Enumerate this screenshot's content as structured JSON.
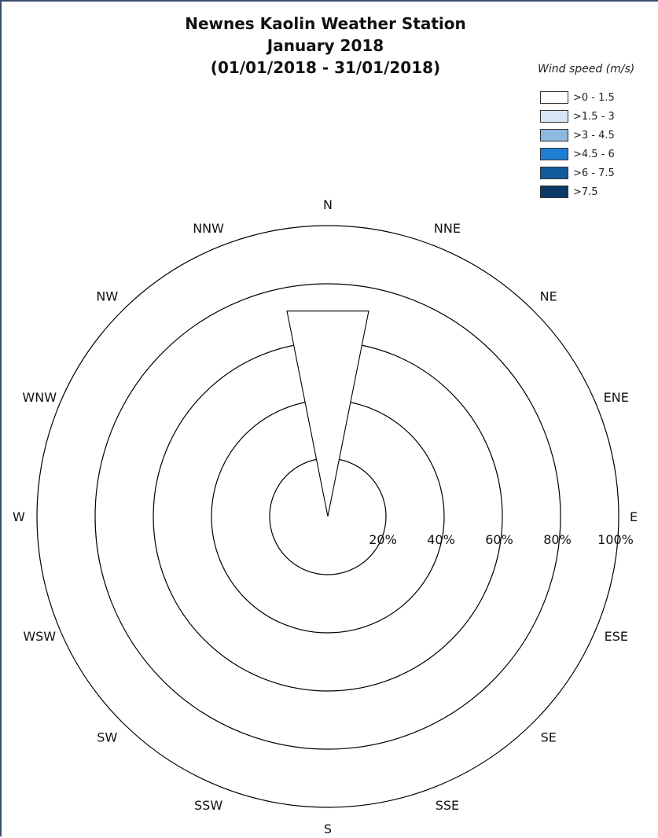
{
  "chart_data": {
    "type": "wind-rose",
    "title": "Newnes Kaolin Weather Station",
    "subtitle": "January 2018",
    "period": "(01/01/2018 - 31/01/2018)",
    "legend_title": "Wind speed (m/s)",
    "legend_position": "top-right",
    "speed_bins": [
      {
        "label": ">0 - 1.5",
        "color": "#ffffff"
      },
      {
        "label": ">1.5 - 3",
        "color": "#d6e6f4"
      },
      {
        "label": ">3 - 4.5",
        "color": "#8db8df"
      },
      {
        "label": ">4.5 - 6",
        "color": "#1f7fd4"
      },
      {
        "label": ">6 - 7.5",
        "color": "#125a9c"
      },
      {
        "label": ">7.5",
        "color": "#0c3a66"
      }
    ],
    "directions": [
      "N",
      "NNE",
      "NE",
      "ENE",
      "E",
      "ESE",
      "SE",
      "SSE",
      "S",
      "SSW",
      "SW",
      "WSW",
      "W",
      "WNW",
      "NW",
      "NNW"
    ],
    "ring_labels": [
      "20%",
      "40%",
      "60%",
      "80%",
      "100%"
    ],
    "r_max": 100,
    "ring_values": [
      20,
      40,
      60,
      80,
      100
    ],
    "frequencies": [
      {
        "direction": "N",
        "values": [
          72,
          0,
          0,
          0,
          0,
          0
        ]
      },
      {
        "direction": "NNE",
        "values": [
          0,
          0,
          0,
          0,
          0,
          0
        ]
      },
      {
        "direction": "NE",
        "values": [
          0,
          0,
          0,
          0,
          0,
          0
        ]
      },
      {
        "direction": "ENE",
        "values": [
          0,
          0,
          0,
          0,
          0,
          0
        ]
      },
      {
        "direction": "E",
        "values": [
          0,
          0,
          0,
          0,
          0,
          0
        ]
      },
      {
        "direction": "ESE",
        "values": [
          0,
          0,
          0,
          0,
          0,
          0
        ]
      },
      {
        "direction": "SE",
        "values": [
          0,
          0,
          0,
          0,
          0,
          0
        ]
      },
      {
        "direction": "SSE",
        "values": [
          0,
          0,
          0,
          0,
          0,
          0
        ]
      },
      {
        "direction": "S",
        "values": [
          0,
          0,
          0,
          0,
          0,
          0
        ]
      },
      {
        "direction": "SSW",
        "values": [
          0,
          0,
          0,
          0,
          0,
          0
        ]
      },
      {
        "direction": "SW",
        "values": [
          0,
          0,
          0,
          0,
          0,
          0
        ]
      },
      {
        "direction": "WSW",
        "values": [
          0,
          0,
          0,
          0,
          0,
          0
        ]
      },
      {
        "direction": "W",
        "values": [
          0,
          0,
          0,
          0,
          0,
          0
        ]
      },
      {
        "direction": "WNW",
        "values": [
          0,
          0,
          0,
          0,
          0,
          0
        ]
      },
      {
        "direction": "NW",
        "values": [
          0,
          0,
          0,
          0,
          0,
          0
        ]
      },
      {
        "direction": "NNW",
        "values": [
          0,
          0,
          0,
          0,
          0,
          0
        ]
      }
    ]
  }
}
